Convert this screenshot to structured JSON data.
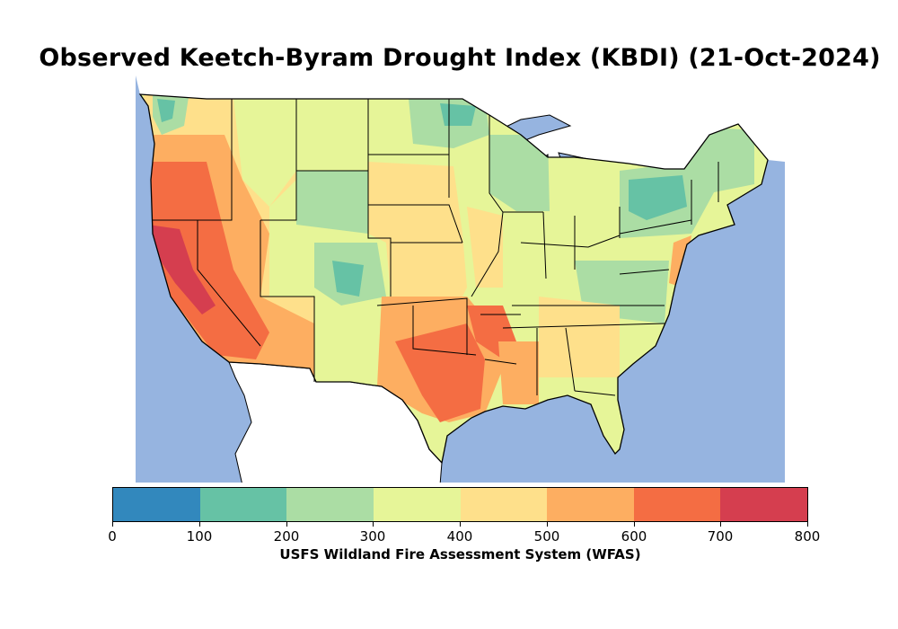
{
  "title": "Observed Keetch-Byram Drought Index (KBDI) (21-Oct-2024)",
  "colorbar": {
    "caption": "USFS Wildland Fire Assessment System (WFAS)",
    "ticks": [
      "0",
      "100",
      "200",
      "300",
      "400",
      "500",
      "600",
      "700",
      "800"
    ],
    "colors": [
      "#3288bd",
      "#66c2a5",
      "#abdda4",
      "#e6f598",
      "#fee08b",
      "#fdae61",
      "#f46d43",
      "#d53e4f"
    ]
  },
  "colors": {
    "water": "#96b4e0",
    "land_unmapped": "#ffffff",
    "border": "#000000"
  }
}
